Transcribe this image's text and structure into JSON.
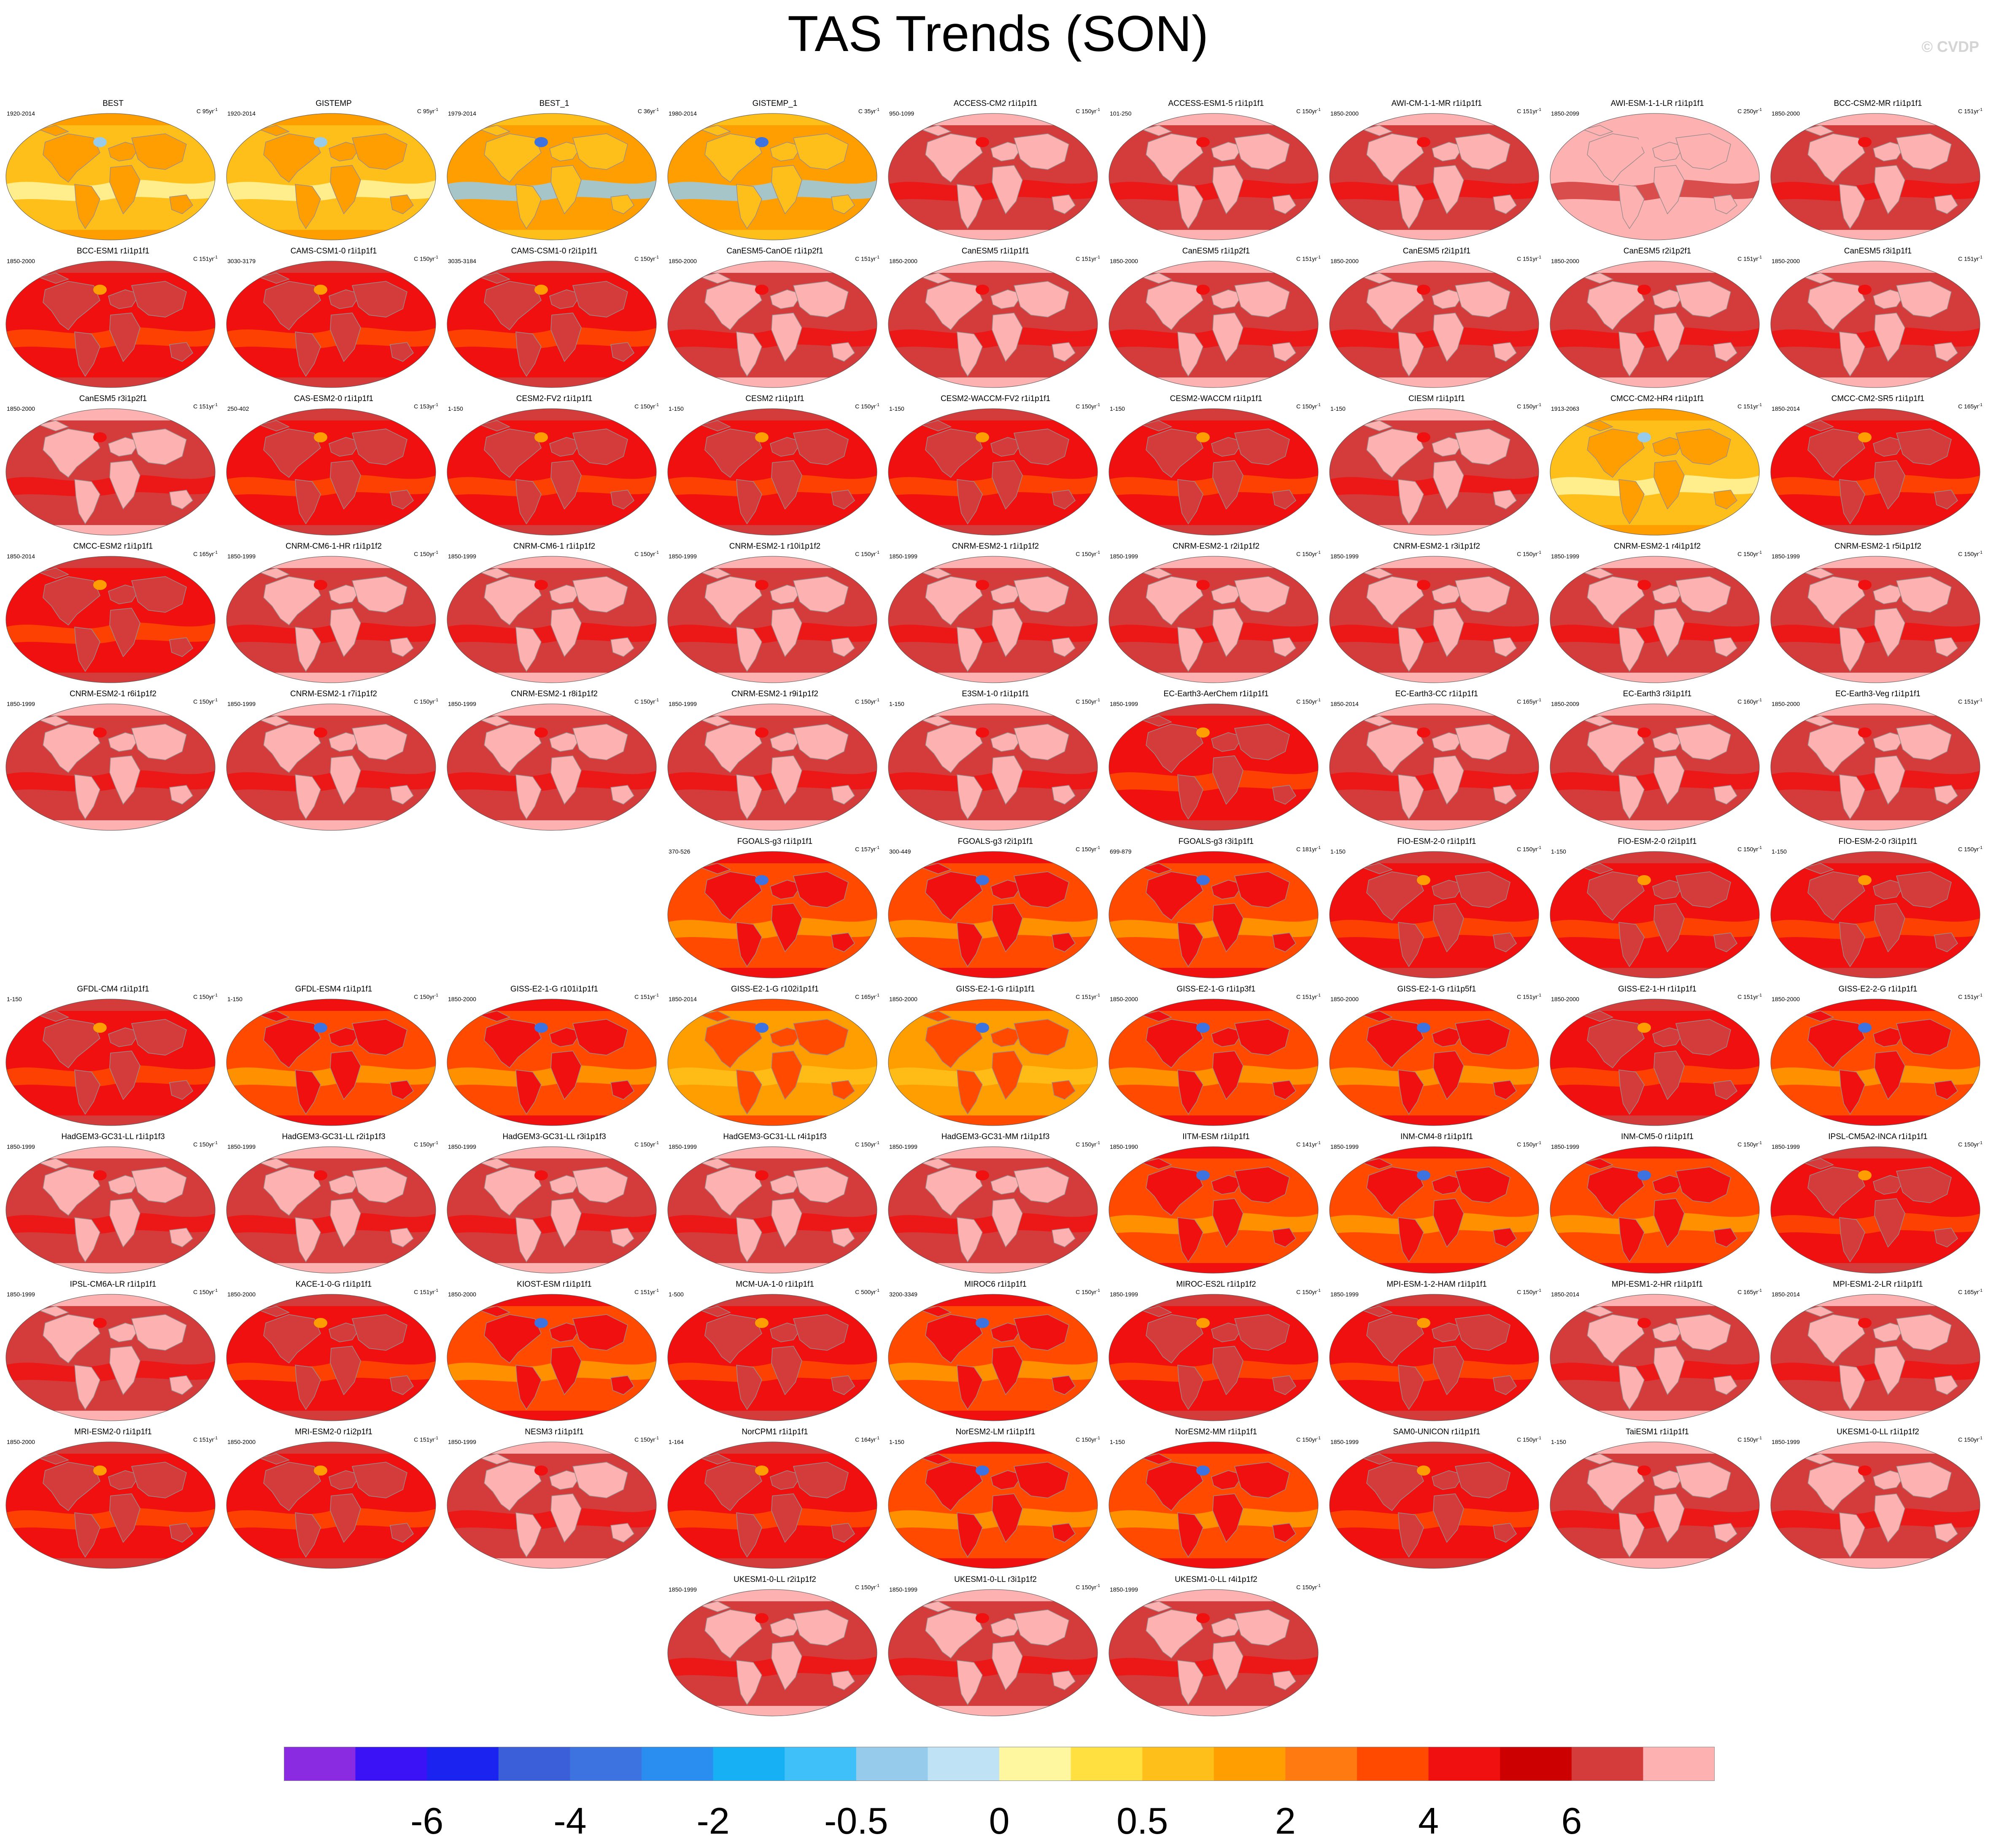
{
  "title": "TAS Trends (SON)",
  "copyright": "© CVDP",
  "colorbar": {
    "colors": [
      "#8a2be2",
      "#3a12f5",
      "#1a23f0",
      "#3a5fd8",
      "#3c73e0",
      "#2a8df0",
      "#18b0f5",
      "#40c0f8",
      "#96cbec",
      "#bfe2f5",
      "#fff6a0",
      "#ffe040",
      "#ffbf1a",
      "#ff9e00",
      "#ff7a10",
      "#ff4a00",
      "#f01010",
      "#cc0000",
      "#d43c3c",
      "#fdb1b1"
    ],
    "labels": [
      "-6",
      "-4",
      "-2",
      "-0.5",
      "0",
      "0.5",
      "2",
      "4",
      "6"
    ],
    "label_positions_index": [
      2,
      4,
      6,
      8,
      10,
      12,
      14,
      16,
      18
    ]
  },
  "palette": {
    "land_base": "#fdb1b1",
    "ocean_base": "#d43c3c",
    "warm_mid": "#f01010",
    "warm_strong": "#ff4a00",
    "orange": "#ff9e00",
    "yellow": "#ffbf1a",
    "light_yellow": "#fff6a0",
    "light_blue": "#96cbec",
    "blue": "#3c73e0"
  },
  "panels": [
    {
      "name": "BEST",
      "period": "1920-2014",
      "scale": "C 95yr",
      "style": "obs"
    },
    {
      "name": "GISTEMP",
      "period": "1920-2014",
      "scale": "C 95yr",
      "style": "obs"
    },
    {
      "name": "BEST_1",
      "period": "1979-2014",
      "scale": "C 36yr",
      "style": "obs2"
    },
    {
      "name": "GISTEMP_1",
      "period": "1980-2014",
      "scale": "C 35yr",
      "style": "obs2"
    },
    {
      "name": "ACCESS-CM2 r1i1p1f1",
      "period": "950-1099",
      "scale": "C 150yr",
      "style": "red"
    },
    {
      "name": "ACCESS-ESM1-5 r1i1p1f1",
      "period": "101-250",
      "scale": "C 150yr",
      "style": "red"
    },
    {
      "name": "AWI-CM-1-1-MR r1i1p1f1",
      "period": "1850-2000",
      "scale": "C 151yr",
      "style": "red"
    },
    {
      "name": "AWI-ESM-1-1-LR r1i1p1f1",
      "period": "1850-2099",
      "scale": "C 250yr",
      "style": "pale"
    },
    {
      "name": "BCC-CSM2-MR r1i1p1f1",
      "period": "1850-2000",
      "scale": "C 151yr",
      "style": "red"
    },
    {
      "name": "BCC-ESM1 r1i1p1f1",
      "period": "1850-2000",
      "scale": "C 151yr",
      "style": "redorange"
    },
    {
      "name": "CAMS-CSM1-0 r1i1p1f1",
      "period": "3030-3179",
      "scale": "C 150yr",
      "style": "redorange"
    },
    {
      "name": "CAMS-CSM1-0 r2i1p1f1",
      "period": "3035-3184",
      "scale": "C 150yr",
      "style": "redorange"
    },
    {
      "name": "CanESM5-CanOE r1i1p2f1",
      "period": "1850-2000",
      "scale": "C 151yr",
      "style": "red"
    },
    {
      "name": "CanESM5 r1i1p1f1",
      "period": "1850-2000",
      "scale": "C 151yr",
      "style": "red"
    },
    {
      "name": "CanESM5 r1i1p2f1",
      "period": "1850-2000",
      "scale": "C 151yr",
      "style": "red"
    },
    {
      "name": "CanESM5 r2i1p1f1",
      "period": "1850-2000",
      "scale": "C 151yr",
      "style": "red"
    },
    {
      "name": "CanESM5 r2i1p2f1",
      "period": "1850-2000",
      "scale": "C 151yr",
      "style": "red"
    },
    {
      "name": "CanESM5 r3i1p1f1",
      "period": "1850-2000",
      "scale": "C 151yr",
      "style": "red"
    },
    {
      "name": "CanESM5 r3i1p2f1",
      "period": "1850-2000",
      "scale": "C 151yr",
      "style": "red"
    },
    {
      "name": "CAS-ESM2-0 r1i1p1f1",
      "period": "250-402",
      "scale": "C 153yr",
      "style": "redorange"
    },
    {
      "name": "CESM2-FV2 r1i1p1f1",
      "period": "1-150",
      "scale": "C 150yr",
      "style": "redorange"
    },
    {
      "name": "CESM2 r1i1p1f1",
      "period": "1-150",
      "scale": "C 150yr",
      "style": "redorange"
    },
    {
      "name": "CESM2-WACCM-FV2 r1i1p1f1",
      "period": "1-150",
      "scale": "C 150yr",
      "style": "redorange"
    },
    {
      "name": "CESM2-WACCM r1i1p1f1",
      "period": "1-150",
      "scale": "C 150yr",
      "style": "redorange"
    },
    {
      "name": "CIESM r1i1p1f1",
      "period": "1-150",
      "scale": "C 150yr",
      "style": "red"
    },
    {
      "name": "CMCC-CM2-HR4 r1i1p1f1",
      "period": "1913-2063",
      "scale": "C 151yr",
      "style": "obs"
    },
    {
      "name": "CMCC-CM2-SR5 r1i1p1f1",
      "period": "1850-2014",
      "scale": "C 165yr",
      "style": "redorange"
    },
    {
      "name": "CMCC-ESM2 r1i1p1f1",
      "period": "1850-2014",
      "scale": "C 165yr",
      "style": "redorange"
    },
    {
      "name": "CNRM-CM6-1-HR r1i1p1f2",
      "period": "1850-1999",
      "scale": "C 150yr",
      "style": "red"
    },
    {
      "name": "CNRM-CM6-1 r1i1p1f2",
      "period": "1850-1999",
      "scale": "C 150yr",
      "style": "red"
    },
    {
      "name": "CNRM-ESM2-1 r10i1p1f2",
      "period": "1850-1999",
      "scale": "C 150yr",
      "style": "red"
    },
    {
      "name": "CNRM-ESM2-1 r1i1p1f2",
      "period": "1850-1999",
      "scale": "C 150yr",
      "style": "red"
    },
    {
      "name": "CNRM-ESM2-1 r2i1p1f2",
      "period": "1850-1999",
      "scale": "C 150yr",
      "style": "red"
    },
    {
      "name": "CNRM-ESM2-1 r3i1p1f2",
      "period": "1850-1999",
      "scale": "C 150yr",
      "style": "red"
    },
    {
      "name": "CNRM-ESM2-1 r4i1p1f2",
      "period": "1850-1999",
      "scale": "C 150yr",
      "style": "red"
    },
    {
      "name": "CNRM-ESM2-1 r5i1p1f2",
      "period": "1850-1999",
      "scale": "C 150yr",
      "style": "red"
    },
    {
      "name": "CNRM-ESM2-1 r6i1p1f2",
      "period": "1850-1999",
      "scale": "C 150yr",
      "style": "red"
    },
    {
      "name": "CNRM-ESM2-1 r7i1p1f2",
      "period": "1850-1999",
      "scale": "C 150yr",
      "style": "red"
    },
    {
      "name": "CNRM-ESM2-1 r8i1p1f2",
      "period": "1850-1999",
      "scale": "C 150yr",
      "style": "red"
    },
    {
      "name": "CNRM-ESM2-1 r9i1p1f2",
      "period": "1850-1999",
      "scale": "C 150yr",
      "style": "red"
    },
    {
      "name": "E3SM-1-0 r1i1p1f1",
      "period": "1-150",
      "scale": "C 150yr",
      "style": "red"
    },
    {
      "name": "EC-Earth3-AerChem r1i1p1f1",
      "period": "1850-1999",
      "scale": "C 150yr",
      "style": "redorange"
    },
    {
      "name": "EC-Earth3-CC r1i1p1f1",
      "period": "1850-2014",
      "scale": "C 165yr",
      "style": "red"
    },
    {
      "name": "EC-Earth3 r3i1p1f1",
      "period": "1850-2009",
      "scale": "C 160yr",
      "style": "red"
    },
    {
      "name": "EC-Earth3-Veg r1i1p1f1",
      "period": "1850-2000",
      "scale": "C 151yr",
      "style": "red"
    },
    {
      "name": "FGOALS-g3 r1i1p1f1",
      "period": "370-526",
      "scale": "C 157yr",
      "style": "orange"
    },
    {
      "name": "FGOALS-g3 r2i1p1f1",
      "period": "300-449",
      "scale": "C 150yr",
      "style": "orange"
    },
    {
      "name": "FGOALS-g3 r3i1p1f1",
      "period": "699-879",
      "scale": "C 181yr",
      "style": "orange"
    },
    {
      "name": "FIO-ESM-2-0 r1i1p1f1",
      "period": "1-150",
      "scale": "C 150yr",
      "style": "redorange"
    },
    {
      "name": "FIO-ESM-2-0 r2i1p1f1",
      "period": "1-150",
      "scale": "C 150yr",
      "style": "redorange"
    },
    {
      "name": "FIO-ESM-2-0 r3i1p1f1",
      "period": "1-150",
      "scale": "C 150yr",
      "style": "redorange"
    },
    {
      "name": "GFDL-CM4 r1i1p1f1",
      "period": "1-150",
      "scale": "C 150yr",
      "style": "redorange"
    },
    {
      "name": "GFDL-ESM4 r1i1p1f1",
      "period": "1-150",
      "scale": "C 150yr",
      "style": "orange"
    },
    {
      "name": "GISS-E2-1-G r101i1p1f1",
      "period": "1850-2000",
      "scale": "C 151yr",
      "style": "orange"
    },
    {
      "name": "GISS-E2-1-G r102i1p1f1",
      "period": "1850-2014",
      "scale": "C 165yr",
      "style": "yellow"
    },
    {
      "name": "GISS-E2-1-G r1i1p1f1",
      "period": "1850-2000",
      "scale": "C 151yr",
      "style": "yellow"
    },
    {
      "name": "GISS-E2-1-G r1i1p3f1",
      "period": "1850-2000",
      "scale": "C 151yr",
      "style": "orange"
    },
    {
      "name": "GISS-E2-1-G r1i1p5f1",
      "period": "1850-2000",
      "scale": "C 151yr",
      "style": "orange"
    },
    {
      "name": "GISS-E2-1-H r1i1p1f1",
      "period": "1850-2000",
      "scale": "C 151yr",
      "style": "redorange"
    },
    {
      "name": "GISS-E2-2-G r1i1p1f1",
      "period": "1850-2000",
      "scale": "C 151yr",
      "style": "orange"
    },
    {
      "name": "HadGEM3-GC31-LL r1i1p1f3",
      "period": "1850-1999",
      "scale": "C 150yr",
      "style": "red"
    },
    {
      "name": "HadGEM3-GC31-LL r2i1p1f3",
      "period": "1850-1999",
      "scale": "C 150yr",
      "style": "red"
    },
    {
      "name": "HadGEM3-GC31-LL r3i1p1f3",
      "period": "1850-1999",
      "scale": "C 150yr",
      "style": "red"
    },
    {
      "name": "HadGEM3-GC31-LL r4i1p1f3",
      "period": "1850-1999",
      "scale": "C 150yr",
      "style": "red"
    },
    {
      "name": "HadGEM3-GC31-MM r1i1p1f3",
      "period": "1850-1999",
      "scale": "C 150yr",
      "style": "red"
    },
    {
      "name": "IITM-ESM r1i1p1f1",
      "period": "1850-1990",
      "scale": "C 141yr",
      "style": "orange"
    },
    {
      "name": "INM-CM4-8 r1i1p1f1",
      "period": "1850-1999",
      "scale": "C 150yr",
      "style": "orange"
    },
    {
      "name": "INM-CM5-0 r1i1p1f1",
      "period": "1850-1999",
      "scale": "C 150yr",
      "style": "orange"
    },
    {
      "name": "IPSL-CM5A2-INCA r1i1p1f1",
      "period": "1850-1999",
      "scale": "C 150yr",
      "style": "redorange"
    },
    {
      "name": "IPSL-CM6A-LR r1i1p1f1",
      "period": "1850-1999",
      "scale": "C 150yr",
      "style": "red"
    },
    {
      "name": "KACE-1-0-G r1i1p1f1",
      "period": "1850-2000",
      "scale": "C 151yr",
      "style": "redorange"
    },
    {
      "name": "KIOST-ESM r1i1p1f1",
      "period": "1850-2000",
      "scale": "C 151yr",
      "style": "orange"
    },
    {
      "name": "MCM-UA-1-0 r1i1p1f1",
      "period": "1-500",
      "scale": "C 500yr",
      "style": "redorange"
    },
    {
      "name": "MIROC6 r1i1p1f1",
      "period": "3200-3349",
      "scale": "C 150yr",
      "style": "orange"
    },
    {
      "name": "MIROC-ES2L r1i1p1f2",
      "period": "1850-1999",
      "scale": "C 150yr",
      "style": "redorange"
    },
    {
      "name": "MPI-ESM-1-2-HAM r1i1p1f1",
      "period": "1850-1999",
      "scale": "C 150yr",
      "style": "redorange"
    },
    {
      "name": "MPI-ESM1-2-HR r1i1p1f1",
      "period": "1850-2014",
      "scale": "C 165yr",
      "style": "red"
    },
    {
      "name": "MPI-ESM1-2-LR r1i1p1f1",
      "period": "1850-2014",
      "scale": "C 165yr",
      "style": "red"
    },
    {
      "name": "MRI-ESM2-0 r1i1p1f1",
      "period": "1850-2000",
      "scale": "C 151yr",
      "style": "redorange"
    },
    {
      "name": "MRI-ESM2-0 r1i2p1f1",
      "period": "1850-2000",
      "scale": "C 151yr",
      "style": "redorange"
    },
    {
      "name": "NESM3 r1i1p1f1",
      "period": "1850-1999",
      "scale": "C 150yr",
      "style": "red"
    },
    {
      "name": "NorCPM1 r1i1p1f1",
      "period": "1-164",
      "scale": "C 164yr",
      "style": "redorange"
    },
    {
      "name": "NorESM2-LM r1i1p1f1",
      "period": "1-150",
      "scale": "C 150yr",
      "style": "orange"
    },
    {
      "name": "NorESM2-MM r1i1p1f1",
      "period": "1-150",
      "scale": "C 150yr",
      "style": "orange"
    },
    {
      "name": "SAM0-UNICON r1i1p1f1",
      "period": "1850-1999",
      "scale": "C 150yr",
      "style": "redorange"
    },
    {
      "name": "TaiESM1 r1i1p1f1",
      "period": "1-150",
      "scale": "C 150yr",
      "style": "red"
    },
    {
      "name": "UKESM1-0-LL r1i1p1f2",
      "period": "1850-1999",
      "scale": "C 150yr",
      "style": "red"
    },
    {
      "name": "UKESM1-0-LL r2i1p1f2",
      "period": "1850-1999",
      "scale": "C 150yr",
      "style": "red"
    },
    {
      "name": "UKESM1-0-LL r3i1p1f2",
      "period": "1850-1999",
      "scale": "C 150yr",
      "style": "red"
    },
    {
      "name": "UKESM1-0-LL r4i1p1f2",
      "period": "1850-1999",
      "scale": "C 150yr",
      "style": "red"
    }
  ]
}
